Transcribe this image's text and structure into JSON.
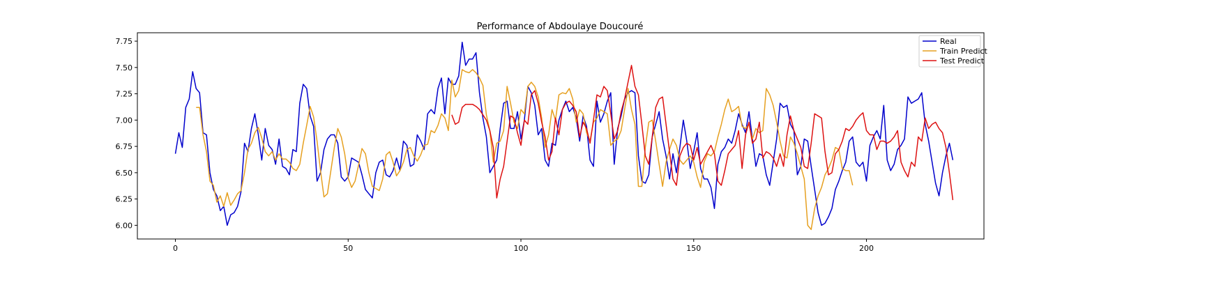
{
  "chart_data": {
    "type": "line",
    "title": "Performance of Abdoulaye Doucouré",
    "xlabel": "",
    "ylabel": "",
    "xlim": [
      -11,
      234
    ],
    "ylim": [
      5.87,
      7.83
    ],
    "x_ticks": [
      0,
      50,
      100,
      150,
      200
    ],
    "y_ticks": [
      6.0,
      6.25,
      6.5,
      6.75,
      7.0,
      7.25,
      7.5,
      7.75
    ],
    "y_tick_labels": [
      "6.00",
      "6.25",
      "6.50",
      "6.75",
      "7.00",
      "7.25",
      "7.50",
      "7.75"
    ],
    "grid": false,
    "legend_position": "top-right",
    "series": [
      {
        "name": "Real",
        "color": "#0000cc",
        "x_start": 0,
        "values": [
          6.68,
          6.88,
          6.74,
          7.12,
          7.2,
          7.46,
          7.3,
          7.26,
          6.88,
          6.86,
          6.5,
          6.34,
          6.28,
          6.14,
          6.18,
          6.0,
          6.1,
          6.12,
          6.18,
          6.32,
          6.78,
          6.7,
          6.92,
          7.06,
          6.86,
          6.62,
          6.92,
          6.76,
          6.72,
          6.58,
          6.82,
          6.56,
          6.54,
          6.48,
          6.72,
          6.7,
          7.16,
          7.34,
          7.3,
          7.04,
          6.94,
          6.42,
          6.5,
          6.72,
          6.82,
          6.86,
          6.86,
          6.78,
          6.46,
          6.42,
          6.46,
          6.64,
          6.62,
          6.6,
          6.48,
          6.34,
          6.3,
          6.26,
          6.5,
          6.6,
          6.62,
          6.48,
          6.46,
          6.52,
          6.64,
          6.52,
          6.8,
          6.76,
          6.56,
          6.58,
          6.86,
          6.8,
          6.72,
          7.06,
          7.1,
          7.06,
          7.3,
          7.4,
          7.06,
          7.4,
          7.34,
          7.34,
          7.42,
          7.74,
          7.52,
          7.58,
          7.58,
          7.64,
          7.26,
          7.02,
          6.84,
          6.5,
          6.56,
          6.62,
          6.92,
          7.16,
          7.18,
          6.92,
          6.92,
          7.08,
          6.82,
          7.0,
          7.32,
          7.26,
          7.14,
          6.86,
          6.92,
          6.62,
          6.56,
          6.78,
          6.76,
          7.0,
          7.1,
          7.18,
          7.08,
          7.12,
          7.02,
          6.8,
          7.04,
          6.94,
          6.62,
          6.56,
          7.18,
          6.98,
          7.06,
          7.18,
          7.26,
          6.58,
          6.92,
          7.04,
          7.2,
          7.26,
          7.28,
          7.26,
          6.66,
          6.42,
          6.4,
          6.48,
          6.84,
          6.96,
          7.08,
          6.82,
          6.66,
          6.44,
          6.68,
          6.5,
          6.74,
          7.0,
          6.8,
          6.54,
          6.7,
          6.88,
          6.54,
          6.44,
          6.44,
          6.36,
          6.16,
          6.58,
          6.7,
          6.74,
          6.82,
          6.78,
          6.9,
          7.06,
          6.96,
          6.88,
          7.08,
          6.82,
          6.56,
          6.68,
          6.66,
          6.48,
          6.38,
          6.6,
          6.82,
          7.16,
          7.12,
          7.14,
          6.96,
          6.9,
          6.48,
          6.56,
          6.82,
          6.8,
          6.56,
          6.34,
          6.12,
          6.0,
          6.02,
          6.08,
          6.16,
          6.34,
          6.42,
          6.52,
          6.6,
          6.8,
          6.84,
          6.6,
          6.56,
          6.6,
          6.42,
          6.76,
          6.84,
          6.9,
          6.82,
          7.14,
          6.62,
          6.52,
          6.58,
          6.72,
          6.76,
          6.82,
          7.22,
          7.16,
          7.18,
          7.2,
          7.26,
          6.96,
          6.8,
          6.6,
          6.4,
          6.28,
          6.5,
          6.66,
          6.78,
          6.62
        ]
      },
      {
        "name": "Train Predict",
        "color": "#e6a020",
        "x_start": 6,
        "values": [
          7.12,
          7.12,
          6.86,
          6.7,
          6.42,
          6.38,
          6.22,
          6.28,
          6.18,
          6.31,
          6.19,
          6.24,
          6.3,
          6.33,
          6.5,
          6.72,
          6.78,
          6.88,
          6.93,
          6.83,
          6.7,
          6.66,
          6.7,
          6.62,
          6.68,
          6.63,
          6.63,
          6.6,
          6.54,
          6.52,
          6.58,
          6.78,
          6.95,
          7.13,
          7.03,
          6.8,
          6.52,
          6.27,
          6.3,
          6.52,
          6.74,
          6.92,
          6.84,
          6.68,
          6.45,
          6.36,
          6.42,
          6.57,
          6.73,
          6.68,
          6.5,
          6.37,
          6.35,
          6.33,
          6.44,
          6.67,
          6.7,
          6.6,
          6.47,
          6.52,
          6.6,
          6.72,
          6.74,
          6.66,
          6.61,
          6.67,
          6.76,
          6.77,
          6.9,
          6.88,
          6.95,
          7.06,
          7.02,
          6.9,
          7.38,
          7.22,
          7.28,
          7.48,
          7.46,
          7.45,
          7.48,
          7.45,
          7.4,
          7.33,
          7.05,
          6.9,
          6.6,
          6.78,
          6.8,
          6.9,
          7.32,
          7.16,
          6.98,
          6.92,
          7.1,
          7.06,
          7.32,
          7.36,
          7.32,
          7.22,
          7.02,
          6.74,
          6.86,
          7.1,
          7.0,
          7.24,
          7.26,
          7.25,
          7.3,
          7.2,
          6.98,
          7.1,
          7.06,
          6.88,
          6.8,
          6.98,
          7.02,
          7.1,
          7.08,
          7.06,
          6.76,
          6.8,
          6.82,
          6.9,
          7.1,
          7.3,
          7.1,
          6.96,
          6.37,
          6.37,
          6.74,
          6.98,
          7.0,
          6.8,
          6.58,
          6.37,
          6.6,
          6.72,
          6.82,
          6.76,
          6.62,
          6.58,
          6.62,
          6.66,
          6.6,
          6.46,
          6.36,
          6.6,
          6.68,
          6.66,
          6.7,
          6.84,
          6.96,
          7.1,
          7.2,
          7.08,
          7.1,
          7.13,
          6.94,
          6.92,
          6.96,
          6.82,
          6.92,
          6.88,
          6.9,
          7.3,
          7.24,
          7.14,
          6.98,
          6.8,
          6.66,
          6.64,
          6.84,
          6.78,
          6.68,
          6.56,
          6.44,
          6.0,
          5.96,
          6.16,
          6.28,
          6.36,
          6.48,
          6.54,
          6.62,
          6.74,
          6.72,
          6.54,
          6.52,
          6.52,
          6.38
        ]
      },
      {
        "name": "Test Predict",
        "color": "#dd1111",
        "x_start": 80,
        "values": [
          7.05,
          6.96,
          6.98,
          7.12,
          7.15,
          7.15,
          7.15,
          7.13,
          7.1,
          7.05,
          7.0,
          6.9,
          6.74,
          6.26,
          6.44,
          6.56,
          6.8,
          7.04,
          7.02,
          6.88,
          6.76,
          7.0,
          6.96,
          7.24,
          7.28,
          7.16,
          6.98,
          6.84,
          6.62,
          6.7,
          7.02,
          6.86,
          7.1,
          7.16,
          7.18,
          7.14,
          7.08,
          6.84,
          6.98,
          6.92,
          6.78,
          7.0,
          7.24,
          7.22,
          7.32,
          7.28,
          7.06,
          6.82,
          6.9,
          7.08,
          7.2,
          7.36,
          7.52,
          7.32,
          7.24,
          6.96,
          6.66,
          6.58,
          6.84,
          7.12,
          7.2,
          7.22,
          6.96,
          6.7,
          6.44,
          6.38,
          6.66,
          6.74,
          6.78,
          6.76,
          6.62,
          6.74,
          6.58,
          6.64,
          6.7,
          6.76,
          6.68,
          6.42,
          6.38,
          6.52,
          6.68,
          6.72,
          6.76,
          6.9,
          6.54,
          6.86,
          6.98,
          6.78,
          6.82,
          6.98,
          6.64,
          6.7,
          6.68,
          6.64,
          6.56,
          6.68,
          6.56,
          6.86,
          7.04,
          6.9,
          6.82,
          6.74,
          6.56,
          6.54,
          6.78,
          7.06,
          7.04,
          7.02,
          6.7,
          6.48,
          6.5,
          6.68,
          6.72,
          6.8,
          6.92,
          6.9,
          6.94,
          7.0,
          7.04,
          7.07,
          6.9,
          6.86,
          6.86,
          6.72,
          6.8,
          6.8,
          6.78,
          6.8,
          6.84,
          6.9,
          6.6,
          6.52,
          6.46,
          6.6,
          6.56,
          6.84,
          6.8,
          7.02,
          6.92,
          6.96,
          6.98,
          6.92,
          6.88,
          6.74,
          6.5,
          6.24
        ]
      }
    ]
  }
}
